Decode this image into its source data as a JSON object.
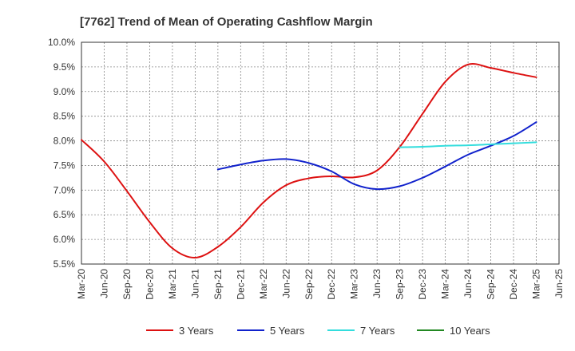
{
  "chart_data": {
    "type": "line",
    "title": "[7762]  Trend of Mean of Operating Cashflow Margin",
    "xlabel": "",
    "ylabel": "",
    "x_ticks": [
      "Mar-20",
      "Jun-20",
      "Sep-20",
      "Dec-20",
      "Mar-21",
      "Jun-21",
      "Sep-21",
      "Dec-21",
      "Mar-22",
      "Jun-22",
      "Sep-22",
      "Dec-22",
      "Mar-23",
      "Jun-23",
      "Sep-23",
      "Dec-23",
      "Mar-24",
      "Jun-24",
      "Sep-24",
      "Dec-24",
      "Mar-25",
      "Jun-25"
    ],
    "y_ticks": [
      "10.0%",
      "9.5%",
      "9.0%",
      "8.5%",
      "8.0%",
      "7.5%",
      "7.0%",
      "6.5%",
      "6.0%",
      "5.5%"
    ],
    "ylim": [
      5.5,
      10.0
    ],
    "y_unit": "%",
    "grid": true,
    "legend_position": "bottom",
    "series": [
      {
        "name": "3 Years",
        "color": "#dd1111",
        "points": [
          [
            "Mar-20",
            8.02
          ],
          [
            "Jun-20",
            7.58
          ],
          [
            "Sep-20",
            6.98
          ],
          [
            "Dec-20",
            6.35
          ],
          [
            "Mar-21",
            5.82
          ],
          [
            "Jun-21",
            5.63
          ],
          [
            "Sep-21",
            5.85
          ],
          [
            "Dec-21",
            6.25
          ],
          [
            "Mar-22",
            6.75
          ],
          [
            "Jun-22",
            7.1
          ],
          [
            "Sep-22",
            7.24
          ],
          [
            "Dec-22",
            7.28
          ],
          [
            "Mar-23",
            7.26
          ],
          [
            "Jun-23",
            7.4
          ],
          [
            "Sep-23",
            7.88
          ],
          [
            "Dec-23",
            8.55
          ],
          [
            "Mar-24",
            9.2
          ],
          [
            "Jun-24",
            9.55
          ],
          [
            "Sep-24",
            9.48
          ],
          [
            "Dec-24",
            9.38
          ],
          [
            "Mar-25",
            9.29
          ]
        ]
      },
      {
        "name": "5 Years",
        "color": "#1122cc",
        "points": [
          [
            "Sep-21",
            7.42
          ],
          [
            "Dec-21",
            7.52
          ],
          [
            "Mar-22",
            7.6
          ],
          [
            "Jun-22",
            7.63
          ],
          [
            "Sep-22",
            7.55
          ],
          [
            "Dec-22",
            7.38
          ],
          [
            "Mar-23",
            7.12
          ],
          [
            "Jun-23",
            7.02
          ],
          [
            "Sep-23",
            7.08
          ],
          [
            "Dec-23",
            7.25
          ],
          [
            "Mar-24",
            7.48
          ],
          [
            "Jun-24",
            7.72
          ],
          [
            "Sep-24",
            7.9
          ],
          [
            "Dec-24",
            8.1
          ],
          [
            "Mar-25",
            8.38
          ]
        ]
      },
      {
        "name": "7 Years",
        "color": "#33dddd",
        "points": [
          [
            "Sep-23",
            7.87
          ],
          [
            "Dec-23",
            7.88
          ],
          [
            "Mar-24",
            7.9
          ],
          [
            "Jun-24",
            7.91
          ],
          [
            "Sep-24",
            7.93
          ],
          [
            "Dec-24",
            7.95
          ],
          [
            "Mar-25",
            7.97
          ]
        ]
      },
      {
        "name": "10 Years",
        "color": "#228822",
        "points": []
      }
    ]
  }
}
